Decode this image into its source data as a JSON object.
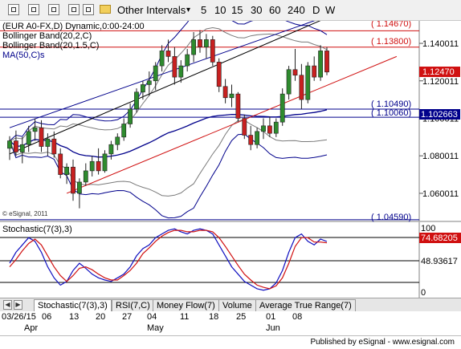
{
  "toolbar": {
    "interval_dropdown": "Other Intervals",
    "dropdown_arrow": "▾",
    "intervals": [
      "5",
      "10",
      "15",
      "30",
      "60",
      "240",
      "D",
      "W"
    ],
    "icons": [
      "print-icon",
      "zoom-in-icon",
      "zoom-out-icon",
      "refresh-icon",
      "folder-icon"
    ]
  },
  "price_panel": {
    "labels": [
      "(EUR A0-FX,D) Dynamic,0:00-24:00",
      "Bollinger Band(20,2,C)",
      "Bollinger Band(20,1.5,C)",
      "MA(50,C)s"
    ],
    "watermark": "© eSignal, 2011",
    "level_labels": [
      "( 1.14670)",
      "( 1.13800)",
      "( 1.10490)",
      "( 1.10060)",
      "( 1.04590)"
    ],
    "last_price": "1.12470",
    "last_price2": "1.102663"
  },
  "stoch_panel": {
    "label": "Stochastic(7(3),3)",
    "value_tag": "74.68205",
    "mid_label": "48.93617",
    "top_label": "100",
    "bottom_label": "0"
  },
  "tabs": {
    "items": [
      "Stochastic(7(3),3)",
      "RSI(7,C)",
      "Money Flow(7)",
      "Volume",
      "Average True Range(7)"
    ],
    "left_arrow": "◀",
    "right_arrow": "▶"
  },
  "xaxis": {
    "first_date": "03/26/15",
    "day_labels": [
      "06",
      "13",
      "20",
      "27",
      "04",
      "11",
      "18",
      "25",
      "01",
      "08"
    ],
    "months": [
      "Apr",
      "May",
      "Jun"
    ]
  },
  "footer": {
    "text": "Published by eSignal - www.esignal.com"
  },
  "colors": {
    "up": "#2e8b2e",
    "down": "#c82020",
    "blue": "#00008b",
    "red": "#d01010",
    "gray": "#7a7a7a"
  },
  "chart_data": [
    {
      "type": "candlestick",
      "title": "(EUR A0-FX,D) Dynamic,0:00-24:00",
      "symbol": "EUR A0-FX",
      "ylim": [
        1.045,
        1.152
      ],
      "yticks": [
        1.06,
        1.08,
        1.1,
        1.12,
        1.14
      ],
      "ytick_labels": [
        "1.060011",
        "1.080011",
        "1.100011",
        "1.120011",
        "1.140011"
      ],
      "candles": [
        {
          "o": 1.084,
          "h": 1.0905,
          "l": 1.0778,
          "c": 1.088
        },
        {
          "o": 1.088,
          "h": 1.0935,
          "l": 1.08,
          "c": 1.082
        },
        {
          "o": 1.082,
          "h": 1.09,
          "l": 1.076,
          "c": 1.086
        },
        {
          "o": 1.086,
          "h": 1.096,
          "l": 1.082,
          "c": 1.093
        },
        {
          "o": 1.093,
          "h": 1.1,
          "l": 1.088,
          "c": 1.095
        },
        {
          "o": 1.095,
          "h": 1.099,
          "l": 1.082,
          "c": 1.085
        },
        {
          "o": 1.085,
          "h": 1.092,
          "l": 1.08,
          "c": 1.089
        },
        {
          "o": 1.089,
          "h": 1.093,
          "l": 1.079,
          "c": 1.081
        },
        {
          "o": 1.081,
          "h": 1.084,
          "l": 1.068,
          "c": 1.07
        },
        {
          "o": 1.07,
          "h": 1.076,
          "l": 1.065,
          "c": 1.074
        },
        {
          "o": 1.074,
          "h": 1.078,
          "l": 1.056,
          "c": 1.06
        },
        {
          "o": 1.06,
          "h": 1.068,
          "l": 1.052,
          "c": 1.066
        },
        {
          "o": 1.066,
          "h": 1.076,
          "l": 1.064,
          "c": 1.072
        },
        {
          "o": 1.072,
          "h": 1.08,
          "l": 1.069,
          "c": 1.077
        },
        {
          "o": 1.077,
          "h": 1.084,
          "l": 1.07,
          "c": 1.072
        },
        {
          "o": 1.072,
          "h": 1.083,
          "l": 1.071,
          "c": 1.081
        },
        {
          "o": 1.081,
          "h": 1.088,
          "l": 1.078,
          "c": 1.086
        },
        {
          "o": 1.086,
          "h": 1.092,
          "l": 1.083,
          "c": 1.09
        },
        {
          "o": 1.09,
          "h": 1.1,
          "l": 1.088,
          "c": 1.097
        },
        {
          "o": 1.097,
          "h": 1.108,
          "l": 1.095,
          "c": 1.105
        },
        {
          "o": 1.105,
          "h": 1.116,
          "l": 1.103,
          "c": 1.114
        },
        {
          "o": 1.114,
          "h": 1.12,
          "l": 1.11,
          "c": 1.118
        },
        {
          "o": 1.118,
          "h": 1.125,
          "l": 1.112,
          "c": 1.12
        },
        {
          "o": 1.12,
          "h": 1.13,
          "l": 1.115,
          "c": 1.128
        },
        {
          "o": 1.128,
          "h": 1.139,
          "l": 1.125,
          "c": 1.136
        },
        {
          "o": 1.136,
          "h": 1.142,
          "l": 1.13,
          "c": 1.133
        },
        {
          "o": 1.133,
          "h": 1.138,
          "l": 1.118,
          "c": 1.122
        },
        {
          "o": 1.122,
          "h": 1.131,
          "l": 1.119,
          "c": 1.128
        },
        {
          "o": 1.128,
          "h": 1.137,
          "l": 1.125,
          "c": 1.134
        },
        {
          "o": 1.134,
          "h": 1.146,
          "l": 1.13,
          "c": 1.142
        },
        {
          "o": 1.142,
          "h": 1.147,
          "l": 1.135,
          "c": 1.138
        },
        {
          "o": 1.138,
          "h": 1.145,
          "l": 1.132,
          "c": 1.142
        },
        {
          "o": 1.142,
          "h": 1.144,
          "l": 1.128,
          "c": 1.13
        },
        {
          "o": 1.13,
          "h": 1.132,
          "l": 1.114,
          "c": 1.117
        },
        {
          "o": 1.117,
          "h": 1.121,
          "l": 1.108,
          "c": 1.111
        },
        {
          "o": 1.111,
          "h": 1.118,
          "l": 1.106,
          "c": 1.113
        },
        {
          "o": 1.113,
          "h": 1.114,
          "l": 1.098,
          "c": 1.1
        },
        {
          "o": 1.1,
          "h": 1.102,
          "l": 1.089,
          "c": 1.091
        },
        {
          "o": 1.091,
          "h": 1.096,
          "l": 1.083,
          "c": 1.086
        },
        {
          "o": 1.086,
          "h": 1.095,
          "l": 1.084,
          "c": 1.093
        },
        {
          "o": 1.093,
          "h": 1.1,
          "l": 1.089,
          "c": 1.096
        },
        {
          "o": 1.096,
          "h": 1.101,
          "l": 1.09,
          "c": 1.092
        },
        {
          "o": 1.092,
          "h": 1.1,
          "l": 1.09,
          "c": 1.098
        },
        {
          "o": 1.098,
          "h": 1.116,
          "l": 1.096,
          "c": 1.113
        },
        {
          "o": 1.113,
          "h": 1.128,
          "l": 1.11,
          "c": 1.126
        },
        {
          "o": 1.126,
          "h": 1.137,
          "l": 1.12,
          "c": 1.123
        },
        {
          "o": 1.123,
          "h": 1.129,
          "l": 1.105,
          "c": 1.11
        },
        {
          "o": 1.11,
          "h": 1.13,
          "l": 1.108,
          "c": 1.128
        },
        {
          "o": 1.128,
          "h": 1.133,
          "l": 1.12,
          "c": 1.122
        },
        {
          "o": 1.122,
          "h": 1.139,
          "l": 1.12,
          "c": 1.136
        },
        {
          "o": 1.136,
          "h": 1.138,
          "l": 1.123,
          "c": 1.1247
        }
      ],
      "levels": [
        1.1467,
        1.138,
        1.1049,
        1.1006,
        1.0459
      ],
      "trendlines": [
        {
          "color": "blue",
          "from": [
            0,
            1.095
          ],
          "to": [
            53,
            1.158
          ]
        },
        {
          "color": "black",
          "from": [
            0,
            1.081
          ],
          "to": [
            53,
            1.158
          ]
        },
        {
          "color": "red",
          "from": [
            9,
            1.06
          ],
          "to": [
            61,
            1.133
          ]
        }
      ]
    },
    {
      "type": "line",
      "title": "Stochastic(7(3),3)",
      "ylim": [
        0,
        100
      ],
      "yticks": [
        0,
        48.93617,
        100
      ],
      "series": [
        {
          "name": "%K",
          "values": [
            45,
            60,
            70,
            80,
            75,
            60,
            40,
            25,
            15,
            20,
            35,
            45,
            38,
            30,
            25,
            22,
            20,
            25,
            30,
            40,
            55,
            65,
            70,
            80,
            85,
            90,
            92,
            88,
            85,
            90,
            92,
            90,
            85,
            70,
            55,
            40,
            30,
            20,
            15,
            10,
            8,
            10,
            18,
            35,
            60,
            80,
            85,
            75,
            70,
            78,
            74.68
          ]
        },
        {
          "name": "%D",
          "values": [
            40,
            50,
            62,
            72,
            78,
            70,
            55,
            40,
            28,
            20,
            28,
            38,
            40,
            36,
            30,
            25,
            22,
            22,
            28,
            35,
            45,
            58,
            66,
            75,
            82,
            87,
            90,
            90,
            88,
            88,
            90,
            90,
            88,
            80,
            68,
            55,
            42,
            30,
            22,
            15,
            12,
            10,
            14,
            25,
            45,
            68,
            80,
            80,
            74,
            74,
            73
          ]
        }
      ]
    }
  ]
}
